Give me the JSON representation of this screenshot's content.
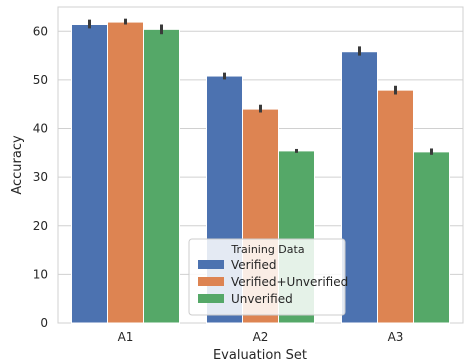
{
  "chart_data": {
    "type": "bar",
    "title": "",
    "xlabel": "Evaluation Set",
    "ylabel": "Accuracy",
    "categories": [
      "A1",
      "A2",
      "A3"
    ],
    "ylim": [
      0,
      65
    ],
    "yticks": [
      0,
      10,
      20,
      30,
      40,
      50,
      60
    ],
    "grid": true,
    "legend": {
      "title": "Training Data",
      "placement": "lower-center"
    },
    "series": [
      {
        "name": "Verified",
        "color": "#4c72b0",
        "values": [
          61.4,
          50.8,
          55.8
        ],
        "ci": [
          [
            60.6,
            62.4
          ],
          [
            50.1,
            51.5
          ],
          [
            55.0,
            56.9
          ]
        ]
      },
      {
        "name": "Verified+Unverified",
        "color": "#dd8452",
        "values": [
          61.9,
          44.0,
          47.9
        ],
        "ci": [
          [
            61.4,
            62.6
          ],
          [
            43.3,
            44.9
          ],
          [
            47.0,
            48.8
          ]
        ]
      },
      {
        "name": "Unverified",
        "color": "#55a868",
        "values": [
          60.4,
          35.4,
          35.2
        ],
        "ci": [
          [
            59.4,
            61.4
          ],
          [
            35.0,
            35.8
          ],
          [
            34.6,
            35.9
          ]
        ]
      }
    ]
  }
}
